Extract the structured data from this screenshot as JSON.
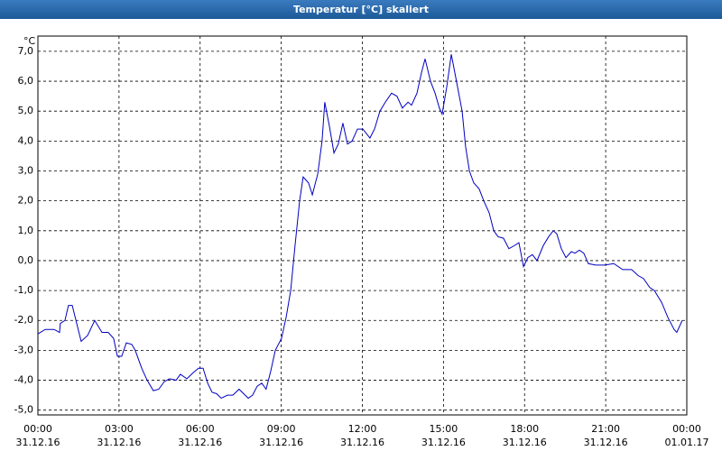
{
  "chart_data": {
    "type": "line",
    "title": "Temperatur [°C] skaliert",
    "y_label": "°C",
    "series": [
      {
        "color": "#0000c0",
        "x": [
          0,
          0.27,
          0.6,
          0.8,
          0.83,
          1.0,
          1.13,
          1.27,
          1.6,
          1.84,
          2.1,
          2.37,
          2.6,
          2.8,
          2.94,
          3.1,
          3.27,
          3.47,
          3.6,
          3.84,
          4.04,
          4.27,
          4.47,
          4.67,
          4.87,
          5.11,
          5.27,
          5.51,
          5.74,
          5.94,
          6.11,
          6.28,
          6.44,
          6.61,
          6.78,
          7.01,
          7.21,
          7.44,
          7.78,
          7.94,
          8.11,
          8.28,
          8.44,
          8.61,
          8.78,
          9.01,
          9.18,
          9.35,
          9.51,
          9.68,
          9.81,
          10.01,
          10.15,
          10.35,
          10.51,
          10.61,
          10.78,
          10.95,
          11.11,
          11.28,
          11.45,
          11.62,
          11.82,
          12.02,
          12.28,
          12.45,
          12.65,
          12.85,
          13.08,
          13.28,
          13.48,
          13.69,
          13.82,
          14.02,
          14.19,
          14.32,
          14.52,
          14.69,
          14.85,
          14.95,
          15.12,
          15.29,
          15.46,
          15.69,
          15.82,
          15.96,
          16.12,
          16.32,
          16.49,
          16.69,
          16.86,
          17.02,
          17.22,
          17.42,
          17.62,
          17.79,
          17.96,
          18.12,
          18.29,
          18.46,
          18.69,
          18.89,
          19.06,
          19.19,
          19.36,
          19.53,
          19.73,
          19.86,
          20.03,
          20.19,
          20.36,
          20.63,
          20.96,
          21.3,
          21.63,
          21.96,
          22.2,
          22.4,
          22.63,
          22.8,
          23.07,
          23.3,
          23.53,
          23.63,
          23.83
        ],
        "values": [
          -2.45,
          -2.3,
          -2.3,
          -2.4,
          -2.1,
          -2.0,
          -1.5,
          -1.5,
          -2.7,
          -2.5,
          -2.0,
          -2.4,
          -2.4,
          -2.6,
          -3.2,
          -3.2,
          -2.75,
          -2.8,
          -3.0,
          -3.6,
          -4.0,
          -4.35,
          -4.3,
          -4.05,
          -3.95,
          -4.0,
          -3.8,
          -3.95,
          -3.75,
          -3.6,
          -3.6,
          -4.1,
          -4.4,
          -4.45,
          -4.6,
          -4.5,
          -4.5,
          -4.3,
          -4.6,
          -4.5,
          -4.2,
          -4.1,
          -4.3,
          -3.7,
          -3.0,
          -2.6,
          -1.9,
          -1.0,
          0.5,
          2.0,
          2.8,
          2.6,
          2.2,
          2.9,
          4.0,
          5.3,
          4.5,
          3.6,
          3.9,
          4.6,
          3.9,
          4.0,
          4.4,
          4.4,
          4.1,
          4.4,
          5.0,
          5.3,
          5.6,
          5.5,
          5.1,
          5.3,
          5.2,
          5.6,
          6.3,
          6.75,
          6.0,
          5.6,
          5.1,
          4.9,
          5.8,
          6.9,
          6.1,
          5.0,
          3.8,
          3.0,
          2.6,
          2.4,
          2.0,
          1.6,
          1.0,
          0.8,
          0.75,
          0.4,
          0.5,
          0.6,
          -0.2,
          0.1,
          0.2,
          0.0,
          0.5,
          0.8,
          1.0,
          0.9,
          0.4,
          0.1,
          0.3,
          0.25,
          0.35,
          0.25,
          -0.1,
          -0.15,
          -0.15,
          -0.1,
          -0.3,
          -0.3,
          -0.5,
          -0.6,
          -0.9,
          -1.0,
          -1.4,
          -1.9,
          -2.3,
          -2.4,
          -2.0
        ]
      }
    ],
    "xlim": [
      0,
      24
    ],
    "xticks": [
      {
        "value": 0,
        "label": "00:00"
      },
      {
        "value": 3,
        "label": "03:00"
      },
      {
        "value": 6,
        "label": "06:00"
      },
      {
        "value": 9,
        "label": "09:00"
      },
      {
        "value": 12,
        "label": "12:00"
      },
      {
        "value": 15,
        "label": "15:00"
      },
      {
        "value": 18,
        "label": "18:00"
      },
      {
        "value": 21,
        "label": "21:00"
      },
      {
        "value": 24,
        "label": "00:00"
      }
    ],
    "xtick_dates": [
      "31.12.16",
      "31.12.16",
      "31.12.16",
      "31.12.16",
      "31.12.16",
      "31.12.16",
      "31.12.16",
      "31.12.16",
      "01.01.17"
    ],
    "ylim": [
      -5.16,
      7.51
    ],
    "yticks": [
      {
        "value": 7,
        "label": "7,0"
      },
      {
        "value": 6,
        "label": "6,0"
      },
      {
        "value": 5,
        "label": "5,0"
      },
      {
        "value": 4,
        "label": "4,0"
      },
      {
        "value": 3,
        "label": "3,0"
      },
      {
        "value": 2,
        "label": "2,0"
      },
      {
        "value": 1,
        "label": "1,0"
      },
      {
        "value": 0,
        "label": "0,0"
      },
      {
        "value": -1,
        "label": "-1,0"
      },
      {
        "value": -2,
        "label": "-2,0"
      },
      {
        "value": -3,
        "label": "-3,0"
      },
      {
        "value": -4,
        "label": "-4,0"
      },
      {
        "value": -5,
        "label": "-5,0"
      }
    ],
    "grid": true
  }
}
